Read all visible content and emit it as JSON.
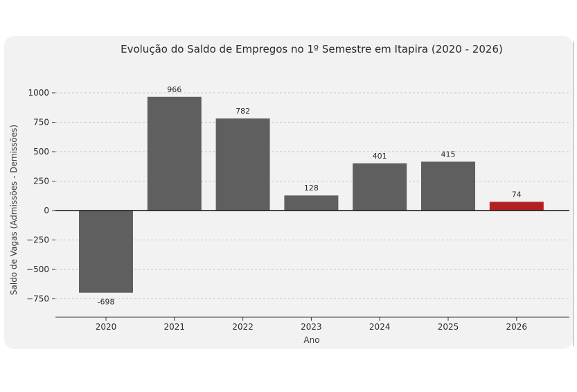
{
  "chart_data": {
    "type": "bar",
    "title": "Evolução do Saldo de Empregos no 1º Semestre em Itapira (2020 - 2026)",
    "xlabel": "Ano",
    "ylabel": "Saldo de Vagas (Admissões - Demissões)",
    "categories": [
      "2020",
      "2021",
      "2022",
      "2023",
      "2024",
      "2025",
      "2026"
    ],
    "values": [
      -698,
      966,
      782,
      128,
      401,
      415,
      74
    ],
    "value_labels": [
      "-698",
      "966",
      "782",
      "128",
      "401",
      "415",
      "74"
    ],
    "yticks": [
      1000,
      750,
      500,
      250,
      0,
      -250,
      -500,
      -750
    ],
    "ytick_labels": [
      "1000",
      "750",
      "500",
      "250",
      "0",
      "−250",
      "−500",
      "−750"
    ],
    "ylim": [
      -900,
      1000
    ],
    "grid": true,
    "colors": {
      "bar": "#5f5f5f",
      "highlight": "#b22222",
      "highlight_category": "2026"
    }
  }
}
